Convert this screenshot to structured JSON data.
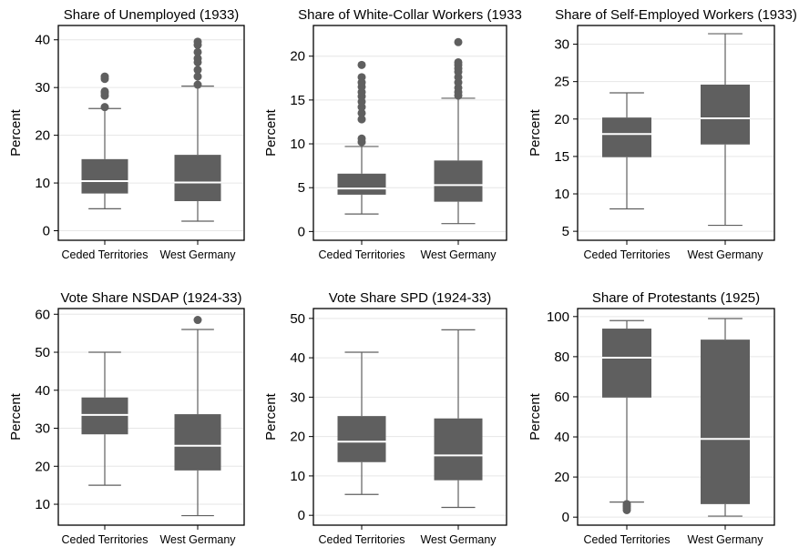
{
  "colors": {
    "box": "#5f5f5f",
    "median": "#ffffff",
    "grid": "#e6e6e6",
    "frame": "#000000",
    "whisker": "#5f5f5f"
  },
  "chart_data": [
    {
      "type": "box",
      "title": "Share of Unemployed (1933)",
      "ylabel": "Percent",
      "ylim": [
        -2,
        43
      ],
      "yticks": [
        0,
        10,
        20,
        30,
        40
      ],
      "grid": true,
      "categories": [
        "Ceded Territories",
        "West Germany"
      ],
      "boxes": [
        {
          "q1": 7.8,
          "median": 10.4,
          "q3": 15.0,
          "whisker_low": 4.6,
          "whisker_high": 25.6,
          "outliers": [
            25.9,
            28.3,
            28.9,
            29.2,
            31.8,
            32.3
          ]
        },
        {
          "q1": 6.2,
          "median": 10.1,
          "q3": 15.9,
          "whisker_low": 2.0,
          "whisker_high": 30.3,
          "outliers": [
            30.6,
            32.3,
            33.7,
            35.3,
            36.1,
            37.4,
            38.9,
            39.6
          ]
        }
      ]
    },
    {
      "type": "box",
      "title": "Share of White-Collar Workers (1933",
      "ylabel": "Percent",
      "ylim": [
        -1,
        23.5
      ],
      "yticks": [
        0,
        5,
        10,
        15,
        20
      ],
      "grid": true,
      "categories": [
        "Ceded Territories",
        "West Germany"
      ],
      "boxes": [
        {
          "q1": 4.2,
          "median": 4.9,
          "q3": 6.6,
          "whisker_low": 2.0,
          "whisker_high": 9.7,
          "outliers": [
            10.2,
            10.6,
            12.8,
            13.5,
            14.2,
            14.8,
            15.4,
            15.9,
            16.5,
            17.0,
            17.6,
            19.0
          ]
        },
        {
          "q1": 3.4,
          "median": 5.3,
          "q3": 8.1,
          "whisker_low": 0.9,
          "whisker_high": 15.2,
          "outliers": [
            15.5,
            15.9,
            16.4,
            17.0,
            17.6,
            18.2,
            18.6,
            19.0,
            19.3,
            21.6
          ]
        }
      ]
    },
    {
      "type": "box",
      "title": "Share of Self-Employed Workers (1933)",
      "ylabel": "Percent",
      "ylim": [
        3.8,
        32.5
      ],
      "yticks": [
        5,
        10,
        15,
        20,
        25,
        30
      ],
      "grid": true,
      "categories": [
        "Ceded Territories",
        "West Germany"
      ],
      "boxes": [
        {
          "q1": 14.9,
          "median": 18.0,
          "q3": 20.2,
          "whisker_low": 8.0,
          "whisker_high": 23.5,
          "outliers": []
        },
        {
          "q1": 16.6,
          "median": 20.1,
          "q3": 24.6,
          "whisker_low": 5.8,
          "whisker_high": 31.4,
          "outliers": []
        }
      ]
    },
    {
      "type": "box",
      "title": "Vote Share NSDAP (1924-33)",
      "ylabel": "Percent",
      "ylim": [
        4.5,
        61.5
      ],
      "yticks": [
        10,
        20,
        30,
        40,
        50,
        60
      ],
      "grid": true,
      "categories": [
        "Ceded Territories",
        "West Germany"
      ],
      "boxes": [
        {
          "q1": 28.4,
          "median": 33.5,
          "q3": 38.1,
          "whisker_low": 15.0,
          "whisker_high": 50.0,
          "outliers": []
        },
        {
          "q1": 18.9,
          "median": 25.4,
          "q3": 33.7,
          "whisker_low": 7.0,
          "whisker_high": 56.0,
          "outliers": [
            58.5
          ]
        }
      ]
    },
    {
      "type": "box",
      "title": "Vote Share SPD (1924-33)",
      "ylabel": "Percent",
      "ylim": [
        -2.5,
        52.5
      ],
      "yticks": [
        0,
        10,
        20,
        30,
        40,
        50
      ],
      "grid": true,
      "categories": [
        "Ceded Territories",
        "West Germany"
      ],
      "boxes": [
        {
          "q1": 13.5,
          "median": 18.7,
          "q3": 25.2,
          "whisker_low": 5.3,
          "whisker_high": 41.4,
          "outliers": []
        },
        {
          "q1": 8.9,
          "median": 15.2,
          "q3": 24.6,
          "whisker_low": 2.0,
          "whisker_high": 47.1,
          "outliers": []
        }
      ]
    },
    {
      "type": "box",
      "title": "Share of Protestants (1925)",
      "ylabel": "Percent",
      "ylim": [
        -4,
        104
      ],
      "yticks": [
        0,
        20,
        40,
        60,
        80,
        100
      ],
      "grid": true,
      "categories": [
        "Ceded Territories",
        "West Germany"
      ],
      "boxes": [
        {
          "q1": 59.6,
          "median": 79.5,
          "q3": 94.0,
          "whisker_low": 7.5,
          "whisker_high": 98.0,
          "outliers": [
            3.5,
            4.5,
            5.5,
            6.5
          ]
        },
        {
          "q1": 6.5,
          "median": 39.0,
          "q3": 88.5,
          "whisker_low": 0.5,
          "whisker_high": 99.0,
          "outliers": []
        }
      ]
    }
  ]
}
